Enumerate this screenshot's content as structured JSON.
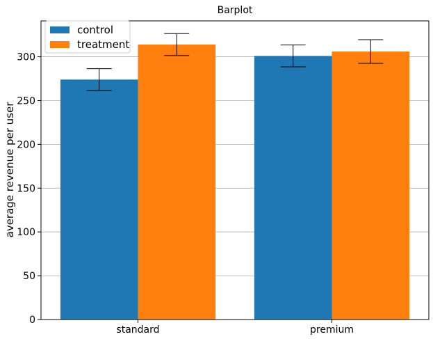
{
  "chart_data": {
    "type": "bar",
    "title": "Barplot",
    "xlabel": "",
    "ylabel": "average revenue per user",
    "categories": [
      "standard",
      "premium"
    ],
    "series": [
      {
        "name": "control",
        "color": "#1f77b4",
        "values": [
          274,
          301
        ],
        "error": [
          12.5,
          12.5
        ]
      },
      {
        "name": "treatment",
        "color": "#ff7f0e",
        "values": [
          314,
          306
        ],
        "error": [
          12.5,
          13.5
        ]
      }
    ],
    "ylim": [
      0,
      341
    ],
    "yticks": [
      0,
      50,
      100,
      150,
      200,
      250,
      300
    ],
    "grid": "horizontal",
    "legend": "top-left"
  }
}
